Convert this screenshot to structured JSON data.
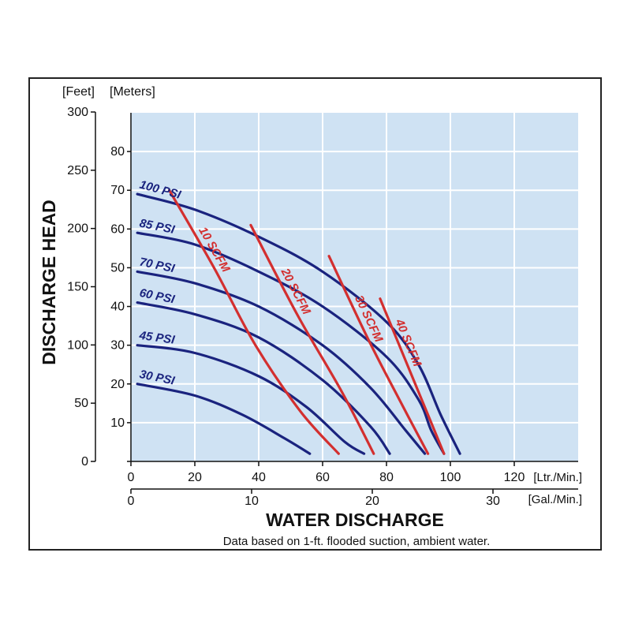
{
  "chart_data": {
    "type": "line",
    "title": "",
    "xlabel": "WATER DISCHARGE",
    "ylabel": "DISCHARGE HEAD",
    "note": "Data based on 1-ft. flooded suction, ambient water.",
    "x_primary": {
      "unit": "[Ltr./Min.]",
      "range": [
        0,
        140
      ],
      "ticks": [
        0,
        20,
        40,
        60,
        80,
        100,
        120
      ]
    },
    "x_secondary": {
      "unit": "[Gal./Min.]",
      "range": [
        0,
        37
      ],
      "ticks": [
        0,
        10,
        20,
        30
      ]
    },
    "y_meters": {
      "unit": "[Meters]",
      "range": [
        0,
        90
      ],
      "ticks": [
        0,
        10,
        20,
        30,
        40,
        50,
        60,
        70,
        80
      ]
    },
    "y_feet": {
      "unit": "[Feet]",
      "range": [
        0,
        300
      ],
      "ticks": [
        0,
        50,
        100,
        150,
        200,
        250,
        300
      ]
    },
    "grid": true,
    "series": [
      {
        "name": "100 PSI",
        "group": "pressure",
        "color": "#1a237e",
        "points": [
          [
            2,
            69
          ],
          [
            20,
            65
          ],
          [
            40,
            58
          ],
          [
            60,
            49
          ],
          [
            80,
            36
          ],
          [
            90,
            25
          ],
          [
            97,
            12
          ],
          [
            103,
            2
          ]
        ]
      },
      {
        "name": "85 PSI",
        "group": "pressure",
        "color": "#1a237e",
        "points": [
          [
            2,
            59
          ],
          [
            20,
            56
          ],
          [
            40,
            49
          ],
          [
            60,
            40
          ],
          [
            80,
            27
          ],
          [
            90,
            16
          ],
          [
            94,
            8
          ],
          [
            98,
            2
          ]
        ]
      },
      {
        "name": "70 PSI",
        "group": "pressure",
        "color": "#1a237e",
        "points": [
          [
            2,
            49
          ],
          [
            20,
            46
          ],
          [
            40,
            40
          ],
          [
            60,
            30
          ],
          [
            75,
            19
          ],
          [
            86,
            8
          ],
          [
            92,
            2
          ]
        ]
      },
      {
        "name": "60 PSI",
        "group": "pressure",
        "color": "#1a237e",
        "points": [
          [
            2,
            41
          ],
          [
            20,
            38
          ],
          [
            40,
            32
          ],
          [
            60,
            21
          ],
          [
            75,
            9
          ],
          [
            81,
            2
          ]
        ]
      },
      {
        "name": "45 PSI",
        "group": "pressure",
        "color": "#1a237e",
        "points": [
          [
            2,
            30
          ],
          [
            20,
            28
          ],
          [
            40,
            22
          ],
          [
            55,
            14
          ],
          [
            67,
            5
          ],
          [
            73,
            2
          ]
        ]
      },
      {
        "name": "30 PSI",
        "group": "pressure",
        "color": "#1a237e",
        "points": [
          [
            2,
            20
          ],
          [
            20,
            17
          ],
          [
            35,
            12
          ],
          [
            48,
            6
          ],
          [
            56,
            2
          ]
        ]
      },
      {
        "name": "10 SCFM",
        "group": "air",
        "color": "#d32f2f",
        "points": [
          [
            12,
            70
          ],
          [
            26,
            50
          ],
          [
            39,
            30
          ],
          [
            53,
            13
          ],
          [
            65,
            2
          ]
        ]
      },
      {
        "name": "20 SCFM",
        "group": "air",
        "color": "#d32f2f",
        "points": [
          [
            37.5,
            61
          ],
          [
            52,
            38
          ],
          [
            66,
            18
          ],
          [
            76,
            2
          ]
        ]
      },
      {
        "name": "30 SCFM",
        "group": "air",
        "color": "#d32f2f",
        "points": [
          [
            62,
            53
          ],
          [
            74,
            32
          ],
          [
            84,
            16
          ],
          [
            93,
            2
          ]
        ]
      },
      {
        "name": "40 SCFM",
        "group": "air",
        "color": "#d32f2f",
        "points": [
          [
            78,
            42
          ],
          [
            84,
            30
          ],
          [
            90,
            18
          ],
          [
            98,
            2
          ]
        ]
      }
    ]
  }
}
